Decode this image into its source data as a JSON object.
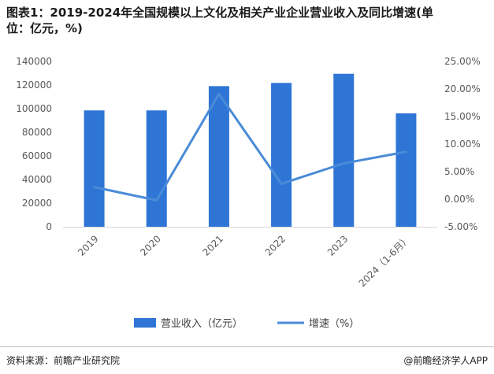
{
  "header": {
    "title": "图表1：2019-2024年全国规模以上文化及相关产业企业营业收入及同比增速(单位：亿元，%)"
  },
  "footer": {
    "source": "资料来源：前瞻产业研究院",
    "brand": "@前瞻经济学人APP"
  },
  "chart_data": {
    "type": "bar",
    "categories": [
      "2019",
      "2020",
      "2021",
      "2022",
      "2023",
      "2024（1-6月）"
    ],
    "series": [
      {
        "name": "营业收入（亿元）",
        "type": "bar",
        "axis": "left",
        "color": "#2E75D6",
        "values": [
          98514,
          98514,
          119064,
          121805,
          129515,
          96061
        ]
      },
      {
        "name": "增速（%）",
        "type": "line",
        "axis": "right",
        "color": "#4A8BD8",
        "values": [
          2.2,
          -0.2,
          19.1,
          2.8,
          6.5,
          8.6
        ]
      }
    ],
    "y_left": {
      "min": 0,
      "max": 140000,
      "ticks": [
        "0",
        "20000",
        "40000",
        "60000",
        "80000",
        "100000",
        "120000",
        "140000"
      ]
    },
    "y_right": {
      "min": -5,
      "max": 25,
      "ticks": [
        "-5.00%",
        "0.00%",
        "5.00%",
        "10.00%",
        "15.00%",
        "20.00%",
        "25.00%"
      ]
    },
    "legend": {
      "position": "bottom"
    },
    "grid": false
  }
}
